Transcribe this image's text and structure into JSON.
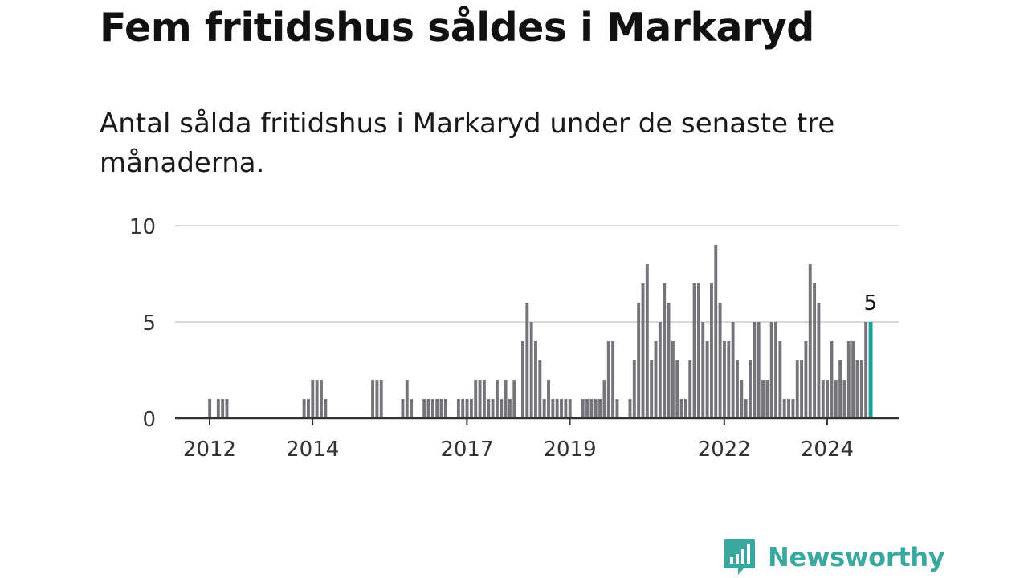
{
  "title": "Fem fritidshus såldes i Markaryd",
  "subtitle": "Antal sålda fritidshus i Markaryd under de senaste tre månaderna.",
  "brand": {
    "name": "Newsworthy",
    "icon": "newsworthy-logo-icon"
  },
  "colors": {
    "bar": "#76747b",
    "highlight": "#1fa29c",
    "grid": "#d9d9d9",
    "axis": "#333333",
    "brand": "#3ba89f"
  },
  "chart_data": {
    "type": "bar",
    "xlabel": "",
    "ylabel": "",
    "ylim": [
      0,
      10
    ],
    "yticks": [
      0,
      5,
      10
    ],
    "xticks": [
      {
        "label": "2012",
        "month": 0
      },
      {
        "label": "2014",
        "month": 24
      },
      {
        "label": "2017",
        "month": 60
      },
      {
        "label": "2019",
        "month": 84
      },
      {
        "label": "2022",
        "month": 120
      },
      {
        "label": "2024",
        "month": 144
      }
    ],
    "start": "2012-01",
    "values": [
      1,
      0,
      1,
      1,
      1,
      0,
      0,
      0,
      0,
      0,
      0,
      0,
      0,
      0,
      0,
      0,
      0,
      0,
      0,
      0,
      0,
      0,
      1,
      1,
      2,
      2,
      2,
      1,
      0,
      0,
      0,
      0,
      0,
      0,
      0,
      0,
      0,
      0,
      2,
      2,
      2,
      0,
      0,
      0,
      0,
      1,
      2,
      1,
      0,
      0,
      1,
      1,
      1,
      1,
      1,
      1,
      0,
      0,
      1,
      1,
      1,
      1,
      2,
      2,
      2,
      1,
      1,
      2,
      1,
      2,
      1,
      2,
      0,
      4,
      6,
      5,
      4,
      3,
      1,
      2,
      1,
      1,
      1,
      1,
      1,
      0,
      0,
      1,
      1,
      1,
      1,
      1,
      2,
      4,
      4,
      1,
      0,
      0,
      1,
      3,
      6,
      7,
      8,
      3,
      4,
      5,
      7,
      6,
      4,
      3,
      1,
      1,
      3,
      7,
      7,
      5,
      4,
      7,
      9,
      6,
      4,
      4,
      5,
      3,
      2,
      1,
      3,
      5,
      5,
      2,
      2,
      5,
      5,
      4,
      1,
      1,
      1,
      3,
      3,
      4,
      8,
      7,
      6,
      2,
      2,
      4,
      2,
      3,
      2,
      4,
      4,
      3,
      3,
      5,
      5
    ],
    "highlight": {
      "label": "5",
      "value": 5
    }
  }
}
